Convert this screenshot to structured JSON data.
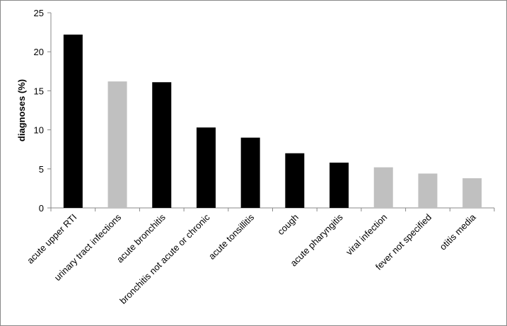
{
  "chart_data": {
    "type": "bar",
    "y_label": "diagnoses (%)",
    "categories": [
      "acute upper RTI",
      "urinary tract infections",
      "acute  bronchitis",
      "bronchitis not acute or chronic",
      "acute tonsillitis",
      "cough",
      "acute pharyngitis",
      "viral infection",
      "fever not specified",
      "otitis media"
    ],
    "values": [
      22.2,
      16.2,
      16.1,
      10.3,
      9.0,
      7.0,
      5.8,
      5.2,
      4.4,
      3.8
    ],
    "colors": [
      "#000000",
      "#c0c0c0",
      "#000000",
      "#000000",
      "#000000",
      "#000000",
      "#000000",
      "#c0c0c0",
      "#c0c0c0",
      "#c0c0c0"
    ],
    "ylim": [
      0,
      25
    ],
    "yticks": [
      0,
      5,
      10,
      15,
      20,
      25
    ],
    "grid": false
  }
}
